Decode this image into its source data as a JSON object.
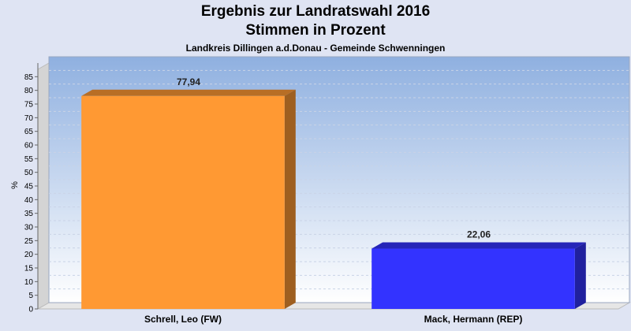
{
  "chart_data": {
    "type": "bar",
    "title": "Ergebnis zur Landratswahl 2016",
    "subtitle": "Stimmen in Prozent",
    "caption": "Landkreis Dillingen a.d.Donau - Gemeinde Schwenningen",
    "ylabel": "%",
    "xlabel": "",
    "ylim": [
      0,
      90
    ],
    "yticks": [
      0,
      5,
      10,
      15,
      20,
      25,
      30,
      35,
      40,
      45,
      50,
      55,
      60,
      65,
      70,
      75,
      80,
      85
    ],
    "categories": [
      "Schrell, Leo (FW)",
      "Mack, Hermann (REP)"
    ],
    "values": [
      77.94,
      22.06
    ],
    "value_labels": [
      "77,94",
      "22,06"
    ],
    "colors": [
      "#ff9933",
      "#3333ff"
    ],
    "grid": true,
    "legend": "none"
  }
}
